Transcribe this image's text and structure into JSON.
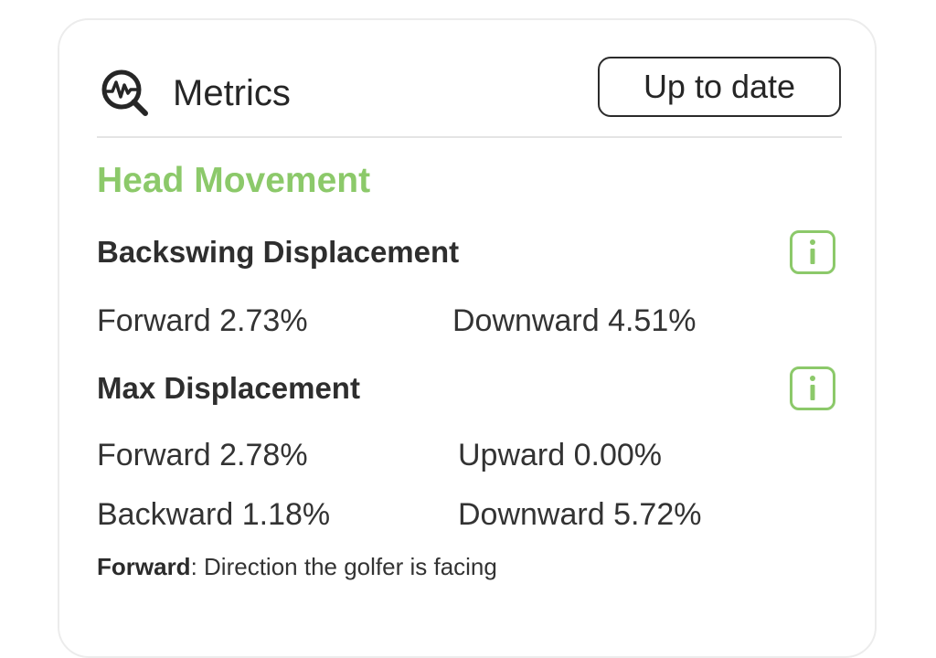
{
  "header": {
    "title": "Metrics",
    "status_button_label": "Up to date",
    "icon": "metrics-magnifier-icon"
  },
  "section": {
    "title": "Head Movement"
  },
  "backswing": {
    "title": "Backswing Displacement",
    "info_icon": "info-icon",
    "forward": "Forward 2.73%",
    "downward": "Downward 4.51%"
  },
  "max": {
    "title": "Max Displacement",
    "info_icon": "info-icon",
    "forward": "Forward 2.78%",
    "upward": "Upward 0.00%",
    "backward": "Backward 1.18%",
    "downward": "Downward 5.72%"
  },
  "footnote": {
    "term": "Forward",
    "definition": ": Direction the golfer is facing"
  },
  "colors": {
    "accent_green": "#8cc96a",
    "text_dark": "#2b2b2b",
    "border": "#ececec"
  }
}
